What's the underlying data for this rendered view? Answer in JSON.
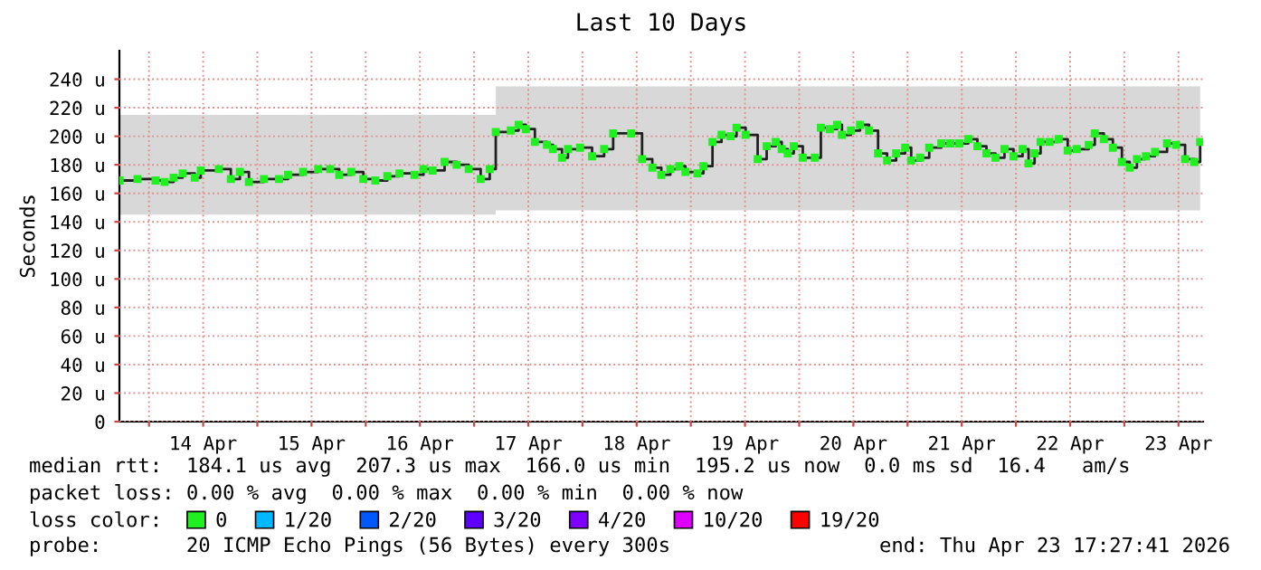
{
  "chart_data": {
    "type": "step",
    "title": "Last 10 Days",
    "ylabel": "Seconds",
    "legend_title": "loss color:",
    "legend": "bottom",
    "grid": true,
    "marker": "square",
    "x": [
      "2026-04-13T17:30",
      "2026-04-13T21:28",
      "2026-04-14T01:28",
      "2026-04-14T03:28",
      "2026-04-14T05:28",
      "2026-04-14T07:28",
      "2026-04-14T10:08",
      "2026-04-14T11:28",
      "2026-04-14T15:28",
      "2026-04-14T18:08",
      "2026-04-14T20:08",
      "2026-04-14T22:08",
      "2026-04-15T01:28",
      "2026-04-15T04:48",
      "2026-04-15T06:48",
      "2026-04-15T10:08",
      "2026-04-15T13:28",
      "2026-04-15T16:08",
      "2026-04-15T18:08",
      "2026-04-15T20:48",
      "2026-04-15T23:28",
      "2026-04-16T02:08",
      "2026-04-16T04:48",
      "2026-04-16T07:28",
      "2026-04-16T10:48",
      "2026-04-16T12:48",
      "2026-04-16T14:48",
      "2026-04-16T17:28",
      "2026-04-16T20:08",
      "2026-04-16T22:48",
      "2026-04-17T01:28",
      "2026-04-17T03:28",
      "2026-04-17T04:48",
      "2026-04-17T08:08",
      "2026-04-17T09:52",
      "2026-04-17T11:28",
      "2026-04-17T13:28",
      "2026-04-17T16:08",
      "2026-04-17T17:28",
      "2026-04-17T19:28",
      "2026-04-17T20:48",
      "2026-04-17T23:28",
      "2026-04-18T02:08",
      "2026-04-18T04:48",
      "2026-04-18T06:48",
      "2026-04-18T10:48",
      "2026-04-18T13:12",
      "2026-04-18T15:28",
      "2026-04-18T17:28",
      "2026-04-18T19:28",
      "2026-04-18T21:28",
      "2026-04-18T22:48",
      "2026-04-19T01:28",
      "2026-04-19T02:48",
      "2026-04-19T04:48",
      "2026-04-19T06:48",
      "2026-04-19T08:48",
      "2026-04-19T10:08",
      "2026-04-19T12:08",
      "2026-04-19T14:48",
      "2026-04-19T16:48",
      "2026-04-19T18:48",
      "2026-04-19T20:08",
      "2026-04-19T21:28",
      "2026-04-19T22:48",
      "2026-04-20T00:48",
      "2026-04-20T03:28",
      "2026-04-20T04:48",
      "2026-04-20T06:48",
      "2026-04-20T08:24",
      "2026-04-20T09:28",
      "2026-04-20T11:28",
      "2026-04-20T13:28",
      "2026-04-20T15:28",
      "2026-04-20T17:28",
      "2026-04-20T19:28",
      "2026-04-20T21:28",
      "2026-04-20T23:28",
      "2026-04-21T00:48",
      "2026-04-21T02:48",
      "2026-04-21T04:48",
      "2026-04-21T07:28",
      "2026-04-21T09:28",
      "2026-04-21T11:28",
      "2026-04-21T13:28",
      "2026-04-21T15:28",
      "2026-04-21T17:28",
      "2026-04-21T19:28",
      "2026-04-21T21:28",
      "2026-04-21T23:28",
      "2026-04-22T01:28",
      "2026-04-22T02:48",
      "2026-04-22T04:08",
      "2026-04-22T05:28",
      "2026-04-22T07:28",
      "2026-04-22T09:28",
      "2026-04-22T11:28",
      "2026-04-22T13:28",
      "2026-04-22T16:08",
      "2026-04-22T17:28",
      "2026-04-22T19:28",
      "2026-04-22T21:28",
      "2026-04-22T23:28",
      "2026-04-23T01:12",
      "2026-04-23T02:48",
      "2026-04-23T04:48",
      "2026-04-23T06:48",
      "2026-04-23T09:28",
      "2026-04-23T11:28",
      "2026-04-23T13:28",
      "2026-04-23T15:28",
      "2026-04-23T16:48"
    ],
    "series": [
      {
        "name": "0",
        "color": "#20f020",
        "values": [
          169,
          170,
          169,
          168,
          171,
          174,
          171,
          176,
          177,
          170,
          175,
          168,
          170,
          170,
          173,
          175,
          177,
          177,
          173,
          175,
          170,
          169,
          172,
          174,
          173,
          177,
          176,
          182,
          180,
          177,
          170,
          177,
          203,
          204,
          208,
          205,
          196,
          194,
          191,
          185,
          191,
          192,
          186,
          191,
          202,
          202,
          184,
          178,
          173,
          177,
          179,
          175,
          174,
          179,
          196,
          201,
          200,
          206,
          201,
          184,
          193,
          196,
          191,
          188,
          193,
          185,
          185,
          206,
          205,
          208,
          201,
          204,
          208,
          204,
          188,
          183,
          188,
          192,
          183,
          185,
          192,
          195,
          195,
          195,
          198,
          193,
          188,
          185,
          191,
          186,
          191,
          181,
          188,
          196,
          196,
          198,
          190,
          191,
          194,
          202,
          198,
          192,
          182,
          178,
          184,
          186,
          189,
          195,
          194,
          184,
          182,
          196
        ],
        "lower": [
          145,
          145,
          145,
          145,
          145,
          145,
          145,
          145,
          145,
          145,
          145,
          145,
          145,
          145,
          145,
          145,
          145,
          145,
          145,
          145,
          145,
          145,
          145,
          145,
          145,
          145,
          145,
          145,
          145,
          145,
          145,
          145,
          148,
          148,
          148,
          148,
          148,
          148,
          148,
          148,
          148,
          148,
          148,
          148,
          148,
          148,
          148,
          148,
          148,
          148,
          148,
          148,
          148,
          148,
          148,
          148,
          148,
          148,
          148,
          148,
          148,
          148,
          148,
          148,
          148,
          148,
          148,
          148,
          148,
          148,
          148,
          148,
          148,
          148,
          148,
          148,
          148,
          148,
          148,
          148,
          148,
          148,
          148,
          148,
          148,
          148,
          148,
          148,
          148,
          148,
          148,
          148,
          148,
          148,
          148,
          148,
          148,
          148,
          148,
          148,
          148,
          148,
          148,
          148,
          148,
          148,
          148,
          148,
          148,
          148,
          148,
          148
        ],
        "upper": [
          215,
          215,
          215,
          215,
          215,
          215,
          215,
          215,
          215,
          215,
          215,
          215,
          215,
          215,
          215,
          215,
          215,
          215,
          215,
          215,
          215,
          215,
          215,
          215,
          215,
          215,
          215,
          215,
          215,
          215,
          215,
          215,
          235,
          235,
          235,
          235,
          235,
          235,
          235,
          235,
          235,
          235,
          235,
          235,
          235,
          235,
          235,
          235,
          235,
          235,
          235,
          235,
          235,
          235,
          235,
          235,
          235,
          235,
          235,
          235,
          235,
          235,
          235,
          235,
          235,
          235,
          235,
          235,
          235,
          235,
          235,
          235,
          235,
          235,
          235,
          235,
          235,
          235,
          235,
          235,
          235,
          235,
          235,
          235,
          235,
          235,
          235,
          235,
          235,
          235,
          235,
          235,
          235,
          235,
          235,
          235,
          235,
          235,
          235,
          235,
          235,
          235,
          235,
          235,
          235,
          235,
          235,
          235,
          235,
          235,
          235,
          235
        ]
      },
      {
        "name": "1/20",
        "color": "#00b8ff",
        "values": [
          null,
          null,
          null,
          null,
          null,
          null,
          null,
          null,
          null,
          null,
          null,
          null,
          null,
          null,
          null,
          null,
          null,
          null,
          null,
          null,
          null,
          null,
          null,
          null,
          null,
          null,
          null,
          null,
          null,
          null,
          null,
          null,
          null,
          null,
          null,
          null,
          null,
          null,
          null,
          null,
          null,
          null,
          null,
          null,
          null,
          null,
          null,
          null,
          null,
          null,
          null,
          null,
          null,
          null,
          null,
          null,
          null,
          null,
          null,
          null,
          null,
          null,
          null,
          null,
          null,
          null,
          null,
          null,
          null,
          null,
          null,
          null,
          null,
          null,
          null,
          null,
          null,
          null,
          null,
          null,
          null,
          null,
          null,
          null,
          null,
          null,
          null,
          null,
          null,
          null,
          null,
          null,
          null,
          null,
          null,
          null,
          null,
          null,
          null,
          null,
          null,
          null,
          null,
          null,
          null,
          null,
          null,
          null,
          null,
          null,
          null,
          null
        ]
      },
      {
        "name": "2/20",
        "color": "#0059ff",
        "values": [
          null,
          null,
          null,
          null,
          null,
          null,
          null,
          null,
          null,
          null,
          null,
          null,
          null,
          null,
          null,
          null,
          null,
          null,
          null,
          null,
          null,
          null,
          null,
          null,
          null,
          null,
          null,
          null,
          null,
          null,
          null,
          null,
          null,
          null,
          null,
          null,
          null,
          null,
          null,
          null,
          null,
          null,
          null,
          null,
          null,
          null,
          null,
          null,
          null,
          null,
          null,
          null,
          null,
          null,
          null,
          null,
          null,
          null,
          null,
          null,
          null,
          null,
          null,
          null,
          null,
          null,
          null,
          null,
          null,
          null,
          null,
          null,
          null,
          null,
          null,
          null,
          null,
          null,
          null,
          null,
          null,
          null,
          null,
          null,
          null,
          null,
          null,
          null,
          null,
          null,
          null,
          null,
          null,
          null,
          null,
          null,
          null,
          null,
          null,
          null,
          null,
          null,
          null,
          null,
          null,
          null,
          null,
          null,
          null,
          null,
          null,
          null
        ]
      },
      {
        "name": "3/20",
        "color": "#5e00ff",
        "values": [
          null,
          null,
          null,
          null,
          null,
          null,
          null,
          null,
          null,
          null,
          null,
          null,
          null,
          null,
          null,
          null,
          null,
          null,
          null,
          null,
          null,
          null,
          null,
          null,
          null,
          null,
          null,
          null,
          null,
          null,
          null,
          null,
          null,
          null,
          null,
          null,
          null,
          null,
          null,
          null,
          null,
          null,
          null,
          null,
          null,
          null,
          null,
          null,
          null,
          null,
          null,
          null,
          null,
          null,
          null,
          null,
          null,
          null,
          null,
          null,
          null,
          null,
          null,
          null,
          null,
          null,
          null,
          null,
          null,
          null,
          null,
          null,
          null,
          null,
          null,
          null,
          null,
          null,
          null,
          null,
          null,
          null,
          null,
          null,
          null,
          null,
          null,
          null,
          null,
          null,
          null,
          null,
          null,
          null,
          null,
          null,
          null,
          null,
          null,
          null,
          null,
          null,
          null,
          null,
          null,
          null,
          null,
          null,
          null,
          null,
          null,
          null
        ]
      },
      {
        "name": "4/20",
        "color": "#7e00ff",
        "values": [
          null,
          null,
          null,
          null,
          null,
          null,
          null,
          null,
          null,
          null,
          null,
          null,
          null,
          null,
          null,
          null,
          null,
          null,
          null,
          null,
          null,
          null,
          null,
          null,
          null,
          null,
          null,
          null,
          null,
          null,
          null,
          null,
          null,
          null,
          null,
          null,
          null,
          null,
          null,
          null,
          null,
          null,
          null,
          null,
          null,
          null,
          null,
          null,
          null,
          null,
          null,
          null,
          null,
          null,
          null,
          null,
          null,
          null,
          null,
          null,
          null,
          null,
          null,
          null,
          null,
          null,
          null,
          null,
          null,
          null,
          null,
          null,
          null,
          null,
          null,
          null,
          null,
          null,
          null,
          null,
          null,
          null,
          null,
          null,
          null,
          null,
          null,
          null,
          null,
          null,
          null,
          null,
          null,
          null,
          null,
          null,
          null,
          null,
          null,
          null,
          null,
          null,
          null,
          null,
          null,
          null,
          null,
          null,
          null,
          null,
          null,
          null
        ]
      },
      {
        "name": "10/20",
        "color": "#dd00ff",
        "values": [
          null,
          null,
          null,
          null,
          null,
          null,
          null,
          null,
          null,
          null,
          null,
          null,
          null,
          null,
          null,
          null,
          null,
          null,
          null,
          null,
          null,
          null,
          null,
          null,
          null,
          null,
          null,
          null,
          null,
          null,
          null,
          null,
          null,
          null,
          null,
          null,
          null,
          null,
          null,
          null,
          null,
          null,
          null,
          null,
          null,
          null,
          null,
          null,
          null,
          null,
          null,
          null,
          null,
          null,
          null,
          null,
          null,
          null,
          null,
          null,
          null,
          null,
          null,
          null,
          null,
          null,
          null,
          null,
          null,
          null,
          null,
          null,
          null,
          null,
          null,
          null,
          null,
          null,
          null,
          null,
          null,
          null,
          null,
          null,
          null,
          null,
          null,
          null,
          null,
          null,
          null,
          null,
          null,
          null,
          null,
          null,
          null,
          null,
          null,
          null,
          null,
          null,
          null,
          null,
          null,
          null,
          null,
          null,
          null,
          null,
          null,
          null
        ]
      },
      {
        "name": "19/20",
        "color": "#ff0000",
        "values": [
          null,
          null,
          null,
          null,
          null,
          null,
          null,
          null,
          null,
          null,
          null,
          null,
          null,
          null,
          null,
          null,
          null,
          null,
          null,
          null,
          null,
          null,
          null,
          null,
          null,
          null,
          null,
          null,
          null,
          null,
          null,
          null,
          null,
          null,
          null,
          null,
          null,
          null,
          null,
          null,
          null,
          null,
          null,
          null,
          null,
          null,
          null,
          null,
          null,
          null,
          null,
          null,
          null,
          null,
          null,
          null,
          null,
          null,
          null,
          null,
          null,
          null,
          null,
          null,
          null,
          null,
          null,
          null,
          null,
          null,
          null,
          null,
          null,
          null,
          null,
          null,
          null,
          null,
          null,
          null,
          null,
          null,
          null,
          null,
          null,
          null,
          null,
          null,
          null,
          null,
          null,
          null,
          null,
          null,
          null,
          null,
          null,
          null,
          null,
          null,
          null,
          null,
          null,
          null,
          null,
          null,
          null,
          null,
          null,
          null,
          null,
          null
        ]
      }
    ],
    "xlim": [
      "2026-04-13T17:27",
      "2026-04-23T17:27"
    ],
    "xticks": [
      {
        "value": "2026-04-14T00:00",
        "label": null
      },
      {
        "value": "2026-04-14T12:00",
        "label": "14 Apr"
      },
      {
        "value": "2026-04-15T00:00",
        "label": null
      },
      {
        "value": "2026-04-15T12:00",
        "label": "15 Apr"
      },
      {
        "value": "2026-04-16T00:00",
        "label": null
      },
      {
        "value": "2026-04-16T12:00",
        "label": "16 Apr"
      },
      {
        "value": "2026-04-17T00:00",
        "label": null
      },
      {
        "value": "2026-04-17T12:00",
        "label": "17 Apr"
      },
      {
        "value": "2026-04-18T00:00",
        "label": null
      },
      {
        "value": "2026-04-18T12:00",
        "label": "18 Apr"
      },
      {
        "value": "2026-04-19T00:00",
        "label": null
      },
      {
        "value": "2026-04-19T12:00",
        "label": "19 Apr"
      },
      {
        "value": "2026-04-20T00:00",
        "label": null
      },
      {
        "value": "2026-04-20T12:00",
        "label": "20 Apr"
      },
      {
        "value": "2026-04-21T00:00",
        "label": null
      },
      {
        "value": "2026-04-21T12:00",
        "label": "21 Apr"
      },
      {
        "value": "2026-04-22T00:00",
        "label": null
      },
      {
        "value": "2026-04-22T12:00",
        "label": "22 Apr"
      },
      {
        "value": "2026-04-23T00:00",
        "label": null
      },
      {
        "value": "2026-04-23T12:00",
        "label": "23 Apr"
      }
    ],
    "ylim": [
      0,
      260
    ],
    "yticks": [
      0,
      {
        "value": 20,
        "label": "20 u"
      },
      {
        "value": 40,
        "label": "40 u"
      },
      {
        "value": 60,
        "label": "60 u"
      },
      {
        "value": 80,
        "label": "80 u"
      },
      {
        "value": 100,
        "label": "100 u"
      },
      {
        "value": 120,
        "label": "120 u"
      },
      {
        "value": 140,
        "label": "140 u"
      },
      {
        "value": 160,
        "label": "160 u"
      },
      {
        "value": 180,
        "label": "180 u"
      },
      {
        "value": 200,
        "label": "200 u"
      },
      {
        "value": 220,
        "label": "220 u"
      },
      {
        "value": 240,
        "label": "240 u"
      }
    ],
    "annotations": [
      "median rtt:  184.1 us avg  207.3 us max  166.0 us min  195.2 us now  0.0 ms sd  16.4   am/s",
      "packet loss: 0.00 % avg  0.00 % max  0.00 % min  0.00 % now",
      "probe:       20 ICMP Echo Pings (56 Bytes) every 300s",
      "end: Thu Apr 23 17:27:41 2026"
    ]
  }
}
